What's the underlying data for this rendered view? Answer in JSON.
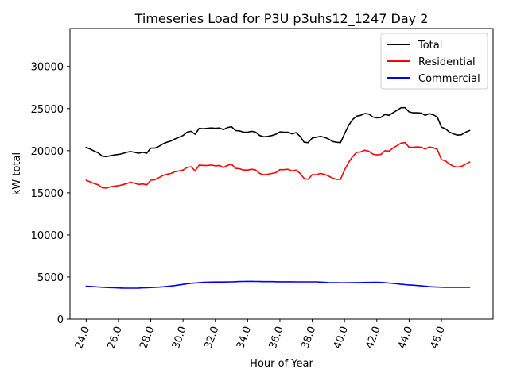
{
  "chart_data": {
    "type": "line",
    "title": "Timeseries Load for P3U p3uhs12_1247  Day 2",
    "xlabel": "Hour of Year",
    "ylabel": "kW total",
    "xlim": [
      23.0,
      49.2
    ],
    "ylim": [
      0,
      34500
    ],
    "x_ticks": [
      24,
      26,
      28,
      30,
      32,
      34,
      36,
      38,
      40,
      42,
      44,
      46
    ],
    "x_tick_labels": [
      "24.0",
      "26.0",
      "28.0",
      "30.0",
      "32.0",
      "34.0",
      "36.0",
      "38.0",
      "40.0",
      "42.0",
      "44.0",
      "46.0"
    ],
    "y_ticks": [
      0,
      5000,
      10000,
      15000,
      20000,
      25000,
      30000
    ],
    "y_tick_labels": [
      "0",
      "5000",
      "10000",
      "15000",
      "20000",
      "25000",
      "30000"
    ],
    "grid": false,
    "legend_position": "top-right",
    "x": [
      24.0,
      24.25,
      24.5,
      24.75,
      25.0,
      25.25,
      25.5,
      25.75,
      26.0,
      26.25,
      26.5,
      26.75,
      27.0,
      27.25,
      27.5,
      27.75,
      28.0,
      28.25,
      28.5,
      28.75,
      29.0,
      29.25,
      29.5,
      29.75,
      30.0,
      30.25,
      30.5,
      30.75,
      31.0,
      31.25,
      31.5,
      31.75,
      32.0,
      32.25,
      32.5,
      32.75,
      33.0,
      33.25,
      33.5,
      33.75,
      34.0,
      34.25,
      34.5,
      34.75,
      35.0,
      35.25,
      35.5,
      35.75,
      36.0,
      36.25,
      36.5,
      36.75,
      37.0,
      37.25,
      37.5,
      37.75,
      38.0,
      38.25,
      38.5,
      38.75,
      39.0,
      39.25,
      39.5,
      39.75,
      40.0,
      40.25,
      40.5,
      40.75,
      41.0,
      41.25,
      41.5,
      41.75,
      42.0,
      42.25,
      42.5,
      42.75,
      43.0,
      43.25,
      43.5,
      43.75,
      44.0,
      44.25,
      44.5,
      44.75,
      45.0,
      45.25,
      45.5,
      45.75,
      46.0,
      46.25,
      46.5,
      46.75,
      47.0,
      47.25,
      47.5,
      47.75
    ],
    "series": [
      {
        "name": "Total",
        "color": "#000000",
        "values": [
          20400,
          20200,
          19950,
          19750,
          19350,
          19300,
          19400,
          19500,
          19550,
          19650,
          19800,
          19900,
          19800,
          19700,
          19800,
          19700,
          20300,
          20300,
          20500,
          20800,
          21000,
          21150,
          21400,
          21600,
          21800,
          22200,
          22300,
          21950,
          22650,
          22600,
          22650,
          22700,
          22650,
          22700,
          22500,
          22750,
          22850,
          22400,
          22350,
          22200,
          22200,
          22300,
          22200,
          21800,
          21650,
          21700,
          21800,
          21950,
          22250,
          22200,
          22200,
          22000,
          22150,
          21700,
          21000,
          20950,
          21500,
          21600,
          21700,
          21600,
          21400,
          21100,
          21000,
          20950,
          22000,
          23000,
          23700,
          24100,
          24200,
          24400,
          24350,
          24000,
          23900,
          23950,
          24300,
          24200,
          24500,
          24800,
          25100,
          25100,
          24600,
          24500,
          24500,
          24450,
          24200,
          24400,
          24250,
          24000,
          22800,
          22600,
          22200,
          22000,
          21850,
          21900,
          22200,
          22400
        ]
      },
      {
        "name": "Residential",
        "color": "#ff0000",
        "values": [
          16500,
          16300,
          16100,
          15950,
          15600,
          15550,
          15700,
          15800,
          15850,
          15950,
          16100,
          16250,
          16150,
          16000,
          16050,
          15950,
          16500,
          16550,
          16800,
          17050,
          17200,
          17300,
          17500,
          17600,
          17700,
          18000,
          18100,
          17600,
          18300,
          18250,
          18250,
          18300,
          18200,
          18250,
          18000,
          18250,
          18400,
          17900,
          17850,
          17700,
          17700,
          17800,
          17700,
          17300,
          17150,
          17200,
          17300,
          17400,
          17750,
          17750,
          17800,
          17600,
          17700,
          17300,
          16700,
          16600,
          17150,
          17150,
          17300,
          17200,
          17000,
          16750,
          16600,
          16600,
          17700,
          18600,
          19300,
          19800,
          19850,
          20050,
          19950,
          19600,
          19500,
          19550,
          20000,
          19950,
          20300,
          20600,
          20900,
          20950,
          20400,
          20400,
          20450,
          20400,
          20200,
          20450,
          20350,
          20150,
          18950,
          18800,
          18400,
          18150,
          18050,
          18150,
          18400,
          18650
        ]
      },
      {
        "name": "Commercial",
        "color": "#0000ff",
        "values": [
          3900,
          3880,
          3850,
          3820,
          3790,
          3760,
          3740,
          3720,
          3700,
          3690,
          3680,
          3680,
          3680,
          3690,
          3710,
          3730,
          3750,
          3770,
          3800,
          3840,
          3880,
          3930,
          3990,
          4060,
          4130,
          4200,
          4260,
          4300,
          4340,
          4370,
          4390,
          4400,
          4410,
          4410,
          4410,
          4420,
          4430,
          4450,
          4470,
          4480,
          4490,
          4490,
          4480,
          4470,
          4460,
          4460,
          4460,
          4450,
          4440,
          4440,
          4440,
          4440,
          4430,
          4430,
          4430,
          4430,
          4430,
          4430,
          4400,
          4380,
          4350,
          4340,
          4330,
          4320,
          4320,
          4330,
          4340,
          4350,
          4350,
          4360,
          4360,
          4370,
          4370,
          4360,
          4330,
          4290,
          4240,
          4190,
          4140,
          4100,
          4060,
          4030,
          3990,
          3950,
          3900,
          3860,
          3830,
          3810,
          3790,
          3780,
          3780,
          3780,
          3780,
          3780,
          3780,
          3780
        ]
      }
    ]
  }
}
